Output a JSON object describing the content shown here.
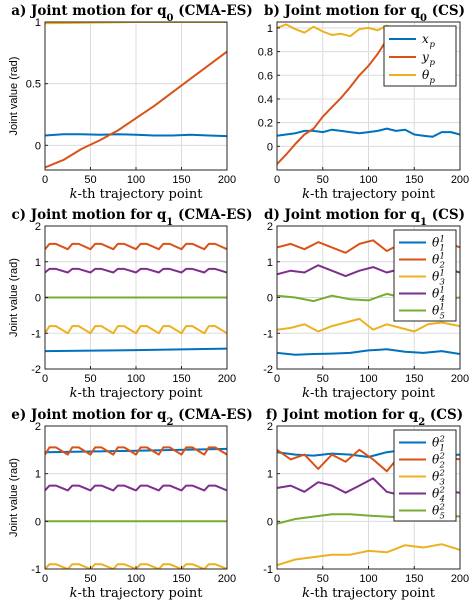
{
  "chart_data": [
    {
      "type": "line",
      "title": "a) Joint motion for q0 (CMA-ES)",
      "xlabel": "k-th trajectory point",
      "ylabel": "Joint value (rad)",
      "xlim": [
        0,
        200
      ],
      "ylim": [
        -0.2,
        1
      ],
      "xticks": [
        0,
        50,
        100,
        150,
        200
      ],
      "yticks": [
        0,
        0.5,
        1
      ],
      "grid": true,
      "legend": null,
      "series": [
        {
          "color": "#0072BD",
          "x": [
            0,
            20,
            40,
            60,
            80,
            100,
            120,
            140,
            160,
            180,
            200
          ],
          "y": [
            0.08,
            0.09,
            0.09,
            0.085,
            0.09,
            0.085,
            0.08,
            0.08,
            0.085,
            0.08,
            0.075
          ]
        },
        {
          "color": "#D95319",
          "x": [
            0,
            20,
            40,
            60,
            80,
            100,
            120,
            140,
            160,
            180,
            200
          ],
          "y": [
            -0.18,
            -0.12,
            -0.03,
            0.04,
            0.12,
            0.22,
            0.32,
            0.43,
            0.54,
            0.65,
            0.76
          ]
        },
        {
          "color": "#EDB120",
          "x": [
            0,
            50,
            100,
            150,
            200
          ],
          "y": [
            0.99,
            0.995,
            1.0,
            1.0,
            1.0
          ]
        }
      ]
    },
    {
      "type": "line",
      "title": "b) Joint motion for q0 (CS)",
      "xlabel": "k-th trajectory point",
      "ylabel": "",
      "xlim": [
        0,
        200
      ],
      "ylim": [
        -0.2,
        1.05
      ],
      "xticks": [
        0,
        50,
        100,
        150,
        200
      ],
      "yticks": [
        0,
        0.2,
        0.4,
        0.6,
        0.8,
        1
      ],
      "grid": true,
      "legend": "top-right",
      "series": [
        {
          "name": "x_p",
          "color": "#0072BD",
          "x": [
            0,
            10,
            20,
            30,
            40,
            50,
            60,
            70,
            80,
            90,
            100,
            110,
            120,
            130,
            140,
            150,
            160,
            170,
            180,
            190,
            200
          ],
          "y": [
            0.09,
            0.1,
            0.11,
            0.13,
            0.13,
            0.12,
            0.14,
            0.13,
            0.12,
            0.11,
            0.12,
            0.13,
            0.15,
            0.13,
            0.14,
            0.1,
            0.09,
            0.08,
            0.12,
            0.12,
            0.1
          ]
        },
        {
          "name": "y_p",
          "color": "#D95319",
          "x": [
            0,
            10,
            20,
            30,
            40,
            50,
            60,
            70,
            80,
            90,
            100,
            110,
            120,
            130
          ],
          "y": [
            -0.15,
            -0.07,
            0.02,
            0.1,
            0.15,
            0.25,
            0.33,
            0.41,
            0.5,
            0.6,
            0.68,
            0.78,
            0.9,
            0.98
          ]
        },
        {
          "name": "θ_p",
          "color": "#EDB120",
          "x": [
            0,
            10,
            20,
            30,
            40,
            50,
            60,
            70,
            80,
            90,
            100,
            110,
            120,
            130,
            140
          ],
          "y": [
            1.0,
            1.03,
            0.99,
            0.96,
            1.01,
            0.97,
            0.94,
            0.95,
            0.93,
            0.99,
            1.0,
            0.98,
            1.02,
            0.99,
            0.95
          ]
        }
      ]
    },
    {
      "type": "line",
      "title": "c) Joint motion for q1 (CMA-ES)",
      "xlabel": "k-th trajectory point",
      "ylabel": "Joint value (rad)",
      "xlim": [
        0,
        200
      ],
      "ylim": [
        -2,
        2
      ],
      "xticks": [
        0,
        50,
        100,
        150,
        200
      ],
      "yticks": [
        -2,
        -1,
        0,
        1,
        2
      ],
      "grid": true,
      "legend": null,
      "series": [
        {
          "color": "#0072BD",
          "x": [
            0,
            100,
            200
          ],
          "y": [
            -1.5,
            -1.47,
            -1.43
          ]
        },
        {
          "color": "#D95319",
          "x": [
            0,
            5,
            12,
            25,
            30,
            37,
            50,
            55,
            62,
            75,
            80,
            87,
            100,
            105,
            112,
            125,
            130,
            137,
            150,
            155,
            162,
            175,
            180,
            187,
            200
          ],
          "y": [
            1.35,
            1.5,
            1.5,
            1.35,
            1.5,
            1.5,
            1.35,
            1.5,
            1.5,
            1.35,
            1.5,
            1.5,
            1.35,
            1.5,
            1.5,
            1.35,
            1.5,
            1.5,
            1.35,
            1.5,
            1.5,
            1.35,
            1.5,
            1.5,
            1.35
          ]
        },
        {
          "color": "#7E2F8E",
          "x": [
            0,
            5,
            12,
            25,
            30,
            37,
            50,
            55,
            62,
            75,
            80,
            87,
            100,
            105,
            112,
            125,
            130,
            137,
            150,
            155,
            162,
            175,
            180,
            187,
            200
          ],
          "y": [
            0.7,
            0.8,
            0.8,
            0.7,
            0.8,
            0.8,
            0.7,
            0.8,
            0.8,
            0.7,
            0.8,
            0.8,
            0.7,
            0.8,
            0.8,
            0.7,
            0.8,
            0.8,
            0.7,
            0.8,
            0.8,
            0.7,
            0.8,
            0.8,
            0.7
          ]
        },
        {
          "color": "#77AC30",
          "x": [
            0,
            200
          ],
          "y": [
            0,
            0
          ]
        },
        {
          "color": "#EDB120",
          "x": [
            0,
            5,
            12,
            25,
            30,
            37,
            50,
            55,
            62,
            75,
            80,
            87,
            100,
            105,
            112,
            125,
            130,
            137,
            150,
            155,
            162,
            175,
            180,
            187,
            200
          ],
          "y": [
            -1.0,
            -0.8,
            -0.8,
            -1.0,
            -0.8,
            -0.8,
            -1.0,
            -0.8,
            -0.8,
            -1.0,
            -0.8,
            -0.8,
            -1.0,
            -0.8,
            -0.8,
            -1.0,
            -0.8,
            -0.8,
            -1.0,
            -0.8,
            -0.8,
            -1.0,
            -0.8,
            -0.8,
            -1.0
          ]
        }
      ]
    },
    {
      "type": "line",
      "title": "d) Joint motion for q1 (CS)",
      "xlabel": "k-th trajectory point",
      "ylabel": "",
      "xlim": [
        0,
        200
      ],
      "ylim": [
        -2,
        2
      ],
      "xticks": [
        0,
        50,
        100,
        150,
        200
      ],
      "yticks": [
        -2,
        -1,
        0,
        1,
        2
      ],
      "grid": true,
      "legend": "top-right",
      "series": [
        {
          "name": "θ_1^1",
          "color": "#0072BD",
          "x": [
            0,
            20,
            40,
            60,
            80,
            100,
            120,
            140,
            160,
            180,
            200
          ],
          "y": [
            -1.55,
            -1.6,
            -1.58,
            -1.57,
            -1.55,
            -1.48,
            -1.45,
            -1.52,
            -1.55,
            -1.5,
            -1.58
          ]
        },
        {
          "name": "θ_2^1",
          "color": "#D95319",
          "x": [
            0,
            15,
            30,
            45,
            60,
            75,
            90,
            105,
            120,
            135,
            150,
            165,
            180,
            200
          ],
          "y": [
            1.4,
            1.5,
            1.35,
            1.55,
            1.4,
            1.25,
            1.5,
            1.6,
            1.3,
            1.5,
            1.35,
            1.45,
            1.6,
            1.4
          ]
        },
        {
          "name": "θ_3^1",
          "color": "#EDB120",
          "x": [
            0,
            15,
            30,
            45,
            60,
            75,
            90,
            105,
            120,
            135,
            150,
            165,
            180,
            200
          ],
          "y": [
            -0.9,
            -0.85,
            -0.75,
            -0.95,
            -0.8,
            -0.7,
            -0.6,
            -0.9,
            -0.75,
            -0.85,
            -0.95,
            -0.75,
            -0.7,
            -0.8
          ]
        },
        {
          "name": "θ_4^1",
          "color": "#7E2F8E",
          "x": [
            0,
            15,
            30,
            45,
            60,
            75,
            90,
            105,
            120,
            135,
            150,
            165,
            180,
            200
          ],
          "y": [
            0.65,
            0.75,
            0.7,
            0.9,
            0.75,
            0.6,
            0.75,
            0.85,
            0.7,
            0.8,
            0.6,
            0.75,
            0.85,
            0.7
          ]
        },
        {
          "name": "θ_5^1",
          "color": "#77AC30",
          "x": [
            0,
            20,
            40,
            60,
            80,
            100,
            120,
            140,
            160,
            180,
            200
          ],
          "y": [
            0.05,
            0.0,
            -0.1,
            0.05,
            -0.05,
            -0.08,
            0.1,
            -0.02,
            -0.12,
            -0.05,
            0.0
          ]
        }
      ]
    },
    {
      "type": "line",
      "title": "e) Joint motion for q2 (CMA-ES)",
      "xlabel": "k-th trajectory point",
      "ylabel": "Joint value (rad)",
      "xlim": [
        0,
        200
      ],
      "ylim": [
        -1,
        2
      ],
      "xticks": [
        0,
        50,
        100,
        150,
        200
      ],
      "yticks": [
        -1,
        0,
        1,
        2
      ],
      "grid": true,
      "legend": null,
      "series": [
        {
          "color": "#0072BD",
          "x": [
            0,
            100,
            200
          ],
          "y": [
            1.45,
            1.48,
            1.52
          ]
        },
        {
          "color": "#D95319",
          "x": [
            0,
            5,
            12,
            25,
            30,
            37,
            50,
            55,
            62,
            75,
            80,
            87,
            100,
            105,
            112,
            125,
            130,
            137,
            150,
            155,
            162,
            175,
            180,
            187,
            200
          ],
          "y": [
            1.4,
            1.55,
            1.55,
            1.4,
            1.55,
            1.55,
            1.4,
            1.55,
            1.55,
            1.4,
            1.55,
            1.55,
            1.4,
            1.55,
            1.55,
            1.4,
            1.55,
            1.55,
            1.4,
            1.55,
            1.55,
            1.4,
            1.55,
            1.55,
            1.4
          ]
        },
        {
          "color": "#7E2F8E",
          "x": [
            0,
            5,
            12,
            25,
            30,
            37,
            50,
            55,
            62,
            75,
            80,
            87,
            100,
            105,
            112,
            125,
            130,
            137,
            150,
            155,
            162,
            175,
            180,
            187,
            200
          ],
          "y": [
            0.65,
            0.75,
            0.75,
            0.65,
            0.75,
            0.75,
            0.65,
            0.75,
            0.75,
            0.65,
            0.75,
            0.75,
            0.65,
            0.75,
            0.75,
            0.65,
            0.75,
            0.75,
            0.65,
            0.75,
            0.75,
            0.65,
            0.75,
            0.75,
            0.65
          ]
        },
        {
          "color": "#77AC30",
          "x": [
            0,
            200
          ],
          "y": [
            0,
            0
          ]
        },
        {
          "color": "#EDB120",
          "x": [
            0,
            5,
            12,
            25,
            30,
            37,
            50,
            55,
            62,
            75,
            80,
            87,
            100,
            105,
            112,
            125,
            130,
            137,
            150,
            155,
            162,
            175,
            180,
            187,
            200
          ],
          "y": [
            -1.0,
            -0.9,
            -0.9,
            -1.0,
            -0.9,
            -0.9,
            -1.0,
            -0.9,
            -0.9,
            -1.0,
            -0.9,
            -0.9,
            -1.0,
            -0.9,
            -0.9,
            -1.0,
            -0.9,
            -0.9,
            -1.0,
            -0.9,
            -0.9,
            -1.0,
            -0.9,
            -0.9,
            -1.0
          ]
        }
      ]
    },
    {
      "type": "line",
      "title": "f) Joint motion for q2 (CS)",
      "xlabel": "k-th trajectory point",
      "ylabel": "",
      "xlim": [
        0,
        200
      ],
      "ylim": [
        -1,
        2
      ],
      "xticks": [
        0,
        50,
        100,
        150,
        200
      ],
      "yticks": [
        -1,
        0,
        1,
        2
      ],
      "grid": true,
      "legend": "top-right",
      "series": [
        {
          "name": "θ_1^2",
          "color": "#0072BD",
          "x": [
            0,
            20,
            40,
            60,
            80,
            100,
            120,
            140,
            160,
            180,
            200
          ],
          "y": [
            1.45,
            1.4,
            1.38,
            1.42,
            1.4,
            1.35,
            1.45,
            1.5,
            1.42,
            1.38,
            1.4
          ]
        },
        {
          "name": "θ_2^2",
          "color": "#D95319",
          "x": [
            0,
            15,
            30,
            45,
            60,
            75,
            90,
            105,
            120,
            135,
            150,
            165,
            180,
            200
          ],
          "y": [
            1.5,
            1.3,
            1.4,
            1.1,
            1.4,
            1.25,
            1.5,
            1.3,
            1.05,
            1.4,
            1.45,
            1.2,
            1.35,
            1.3
          ]
        },
        {
          "name": "θ_3^2",
          "color": "#EDB120",
          "x": [
            0,
            20,
            40,
            60,
            80,
            100,
            120,
            140,
            160,
            180,
            200
          ],
          "y": [
            -0.92,
            -0.8,
            -0.75,
            -0.7,
            -0.7,
            -0.62,
            -0.65,
            -0.5,
            -0.55,
            -0.48,
            -0.6
          ]
        },
        {
          "name": "θ_4^2",
          "color": "#7E2F8E",
          "x": [
            0,
            15,
            30,
            45,
            60,
            75,
            90,
            105,
            120,
            135,
            150,
            165,
            180,
            200
          ],
          "y": [
            0.7,
            0.75,
            0.62,
            0.82,
            0.75,
            0.6,
            0.75,
            0.9,
            0.62,
            0.55,
            0.75,
            0.7,
            0.65,
            0.6
          ]
        },
        {
          "name": "θ_5^2",
          "color": "#77AC30",
          "x": [
            0,
            20,
            40,
            60,
            80,
            100,
            120,
            140,
            160,
            180,
            200
          ],
          "y": [
            -0.05,
            0.05,
            0.1,
            0.15,
            0.15,
            0.12,
            0.1,
            0.08,
            0.1,
            0.15,
            0.1
          ]
        }
      ]
    }
  ]
}
